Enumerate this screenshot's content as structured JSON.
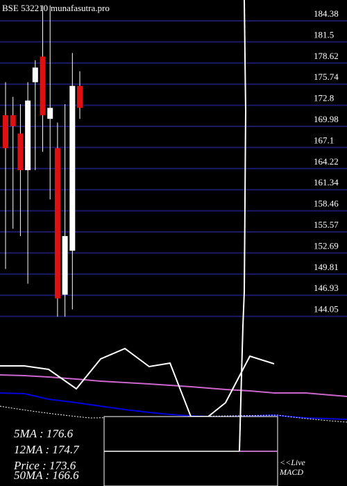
{
  "chart_data": {
    "type": "candlestick",
    "title": "BSE 532210",
    "watermark": "munafasutra.pro",
    "price_axis": {
      "ticks": [
        "184.38",
        "181.5",
        "178.62",
        "175.74",
        "172.8",
        "169.98",
        "167.1",
        "164.22",
        "161.34",
        "158.46",
        "155.57",
        "152.69",
        "149.81",
        "146.93",
        "144.05"
      ],
      "ylim": [
        144.05,
        184.38
      ]
    },
    "candles": [
      {
        "open": 171.5,
        "close": 167.0,
        "high": 176.0,
        "low": 150.5
      },
      {
        "open": 171.5,
        "close": 170.0,
        "high": 174.0,
        "low": 156.0
      },
      {
        "open": 169.0,
        "close": 164.0,
        "high": 173.0,
        "low": 155.0
      },
      {
        "open": 164.0,
        "close": 173.5,
        "high": 176.0,
        "low": 148.5
      },
      {
        "open": 176.0,
        "close": 178.0,
        "high": 179.0,
        "low": 164.0
      },
      {
        "open": 179.5,
        "close": 171.5,
        "high": 186.5,
        "low": 166.5
      },
      {
        "open": 171.0,
        "close": 172.5,
        "high": 186.5,
        "low": 160.0
      },
      {
        "open": 167.0,
        "close": 146.5,
        "high": 170.5,
        "low": 144.0
      },
      {
        "open": 147.0,
        "close": 155.0,
        "high": 173.0,
        "low": 144.0
      },
      {
        "open": 153.0,
        "close": 175.5,
        "high": 180.0,
        "low": 145.0
      },
      {
        "open": 175.5,
        "close": 172.5,
        "high": 177.5,
        "low": 171.0
      }
    ],
    "macd_panel": {
      "macd_line_x": [
        0,
        35,
        70,
        110,
        145,
        180,
        215,
        245,
        275,
        300,
        325,
        360,
        395
      ],
      "macd_line_y": [
        527,
        527,
        532,
        560,
        517,
        502,
        528,
        523,
        600,
        600,
        580,
        513,
        524
      ],
      "signal_magenta_y": [
        540,
        541,
        543,
        546,
        549,
        551,
        553,
        555,
        557,
        559,
        561,
        563,
        566
      ],
      "blue_line_y": [
        566,
        567,
        575,
        580,
        585,
        590,
        594,
        597,
        599,
        600,
        600,
        599,
        598
      ],
      "colors": {
        "macd": "#ffffff",
        "signal": "#cc66cc",
        "blue": "#0000dd"
      }
    },
    "overlay_lines": {
      "vertical_spike_top_value": 184.38
    },
    "stats": {
      "ma5": "5MA : 176.6",
      "ma12": "12MA : 174.7",
      "price": "Price   : 173.6",
      "ma50": "50MA : 166.6"
    },
    "live_label": "<<Live",
    "macd_label": "MACD"
  }
}
